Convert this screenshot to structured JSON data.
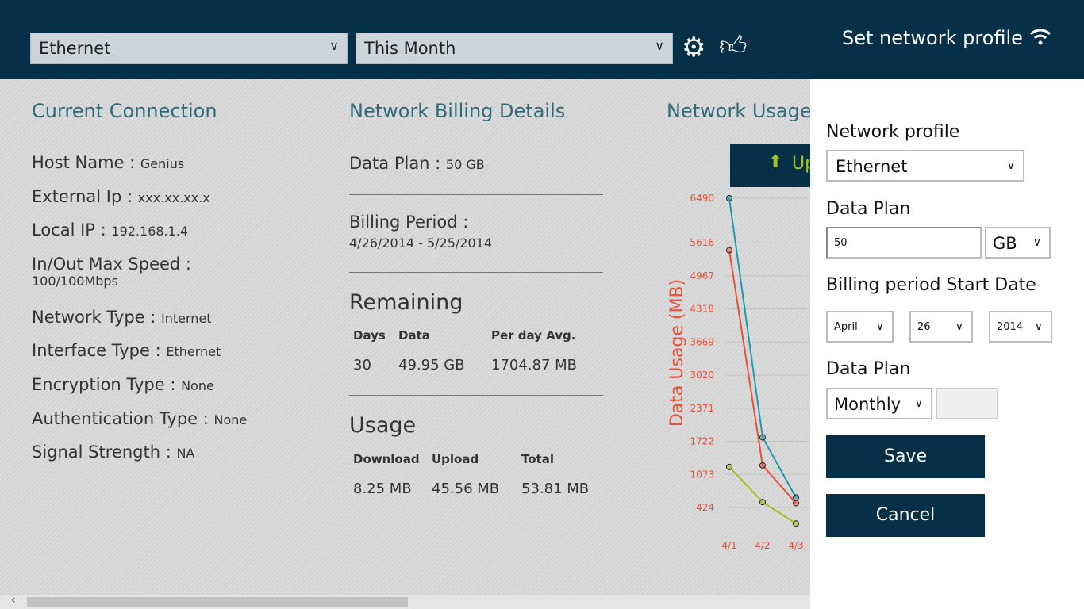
{
  "header": {
    "network_select": "Ethernet",
    "period_select": "This Month",
    "settings_icon": "gear-icon",
    "like_icon": "thumbs-up-icon",
    "set_profile_title": "Set network profile",
    "wifi_icon": "wifi-icon"
  },
  "current": {
    "title": "Current Connection",
    "rows": [
      {
        "label": "Host Name : ",
        "value": "Genius"
      },
      {
        "label": "External Ip : ",
        "value": "xxx.xx.xx.x"
      },
      {
        "label": "Local IP : ",
        "value": "192.168.1.4"
      },
      {
        "label": "In/Out Max Speed : ",
        "value": "100/100Mbps"
      },
      {
        "label": "Network Type : ",
        "value": "Internet"
      },
      {
        "label": "Interface Type : ",
        "value": "Ethernet"
      },
      {
        "label": "Encryption Type : ",
        "value": "None"
      },
      {
        "label": "Authentication Type : ",
        "value": "None"
      },
      {
        "label": "Signal Strength : ",
        "value": "NA"
      }
    ]
  },
  "billing": {
    "title": "Network Billing Details",
    "plan_label": "Data Plan : ",
    "plan_value": "50 GB",
    "period_label": "Billing Period :",
    "period_value": "4/26/2014 - 5/25/2014",
    "remaining": {
      "title": "Remaining",
      "headers": [
        "Days",
        "Data",
        "Per day Avg."
      ],
      "values": [
        "30",
        "49.95 GB",
        "1704.87 MB"
      ]
    },
    "usage": {
      "title": "Usage",
      "headers": [
        "Download",
        "Upload",
        "Total"
      ],
      "values": [
        "8.25 MB",
        "45.56 MB",
        "53.81 MB"
      ]
    }
  },
  "usage_chart_section": {
    "title": "Network Usage",
    "upload_button": "Up"
  },
  "chart_data": {
    "type": "line",
    "ylabel": "Data Usage (MB)",
    "categories": [
      "4/1",
      "4/2",
      "4/3"
    ],
    "yticks": [
      6490,
      5616,
      4967,
      4318,
      3669,
      3020,
      2371,
      1722,
      1073,
      424
    ],
    "ylim": [
      424,
      6490
    ],
    "grid": true,
    "series": [
      {
        "color": "#1e9ab0",
        "values": [
          6490,
          1800,
          620
        ]
      },
      {
        "color": "#e8503a",
        "values": [
          5470,
          1250,
          510
        ]
      },
      {
        "color": "#a4c11c",
        "values": [
          1220,
          530,
          110
        ]
      }
    ]
  },
  "panel": {
    "profile_label": "Network profile",
    "profile_value": "Ethernet",
    "plan_label": "Data Plan",
    "plan_value": "50",
    "plan_unit": "GB",
    "start_label": "Billing period Start Date",
    "month": "April",
    "day": "26",
    "year": "2014",
    "plan2_label": "Data Plan",
    "plan_type": "Monthly",
    "extra_value": "",
    "save": "Save",
    "cancel": "Cancel"
  }
}
